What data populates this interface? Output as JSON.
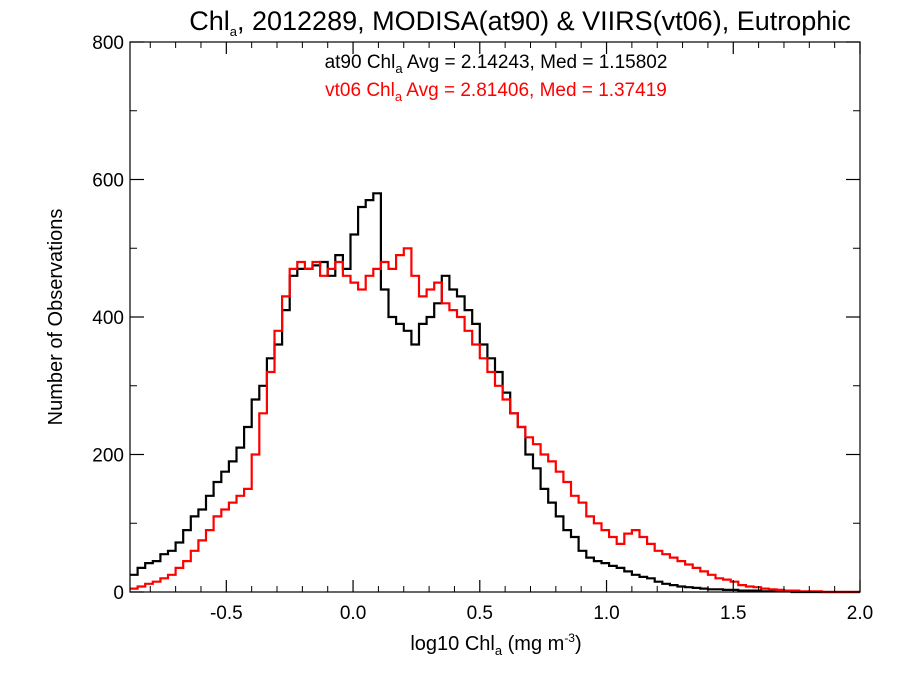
{
  "chart_data": {
    "type": "line",
    "step": true,
    "title": {
      "main": "Chl",
      "sub": "a",
      "rest": ", 2012289, MODISA(at90) & VIIRS(vt06), Eutrophic"
    },
    "xlabel": {
      "pre": "log10 Chl",
      "sub": "a",
      "mid": " (mg m",
      "sup": "-3",
      "post": ")"
    },
    "ylabel": "Number of Observations",
    "xlim": [
      -0.88,
      2.0
    ],
    "ylim": [
      0,
      800
    ],
    "x_ticks": [
      "-0.5",
      "0.0",
      "0.5",
      "1.0",
      "1.5",
      "2.0"
    ],
    "x_tick_values": [
      -0.5,
      0.0,
      0.5,
      1.0,
      1.5,
      2.0
    ],
    "y_ticks": [
      "0",
      "200",
      "400",
      "600",
      "800"
    ],
    "y_tick_values": [
      0,
      200,
      400,
      600,
      800
    ],
    "annotations": [
      {
        "pre": "at90 Chl",
        "sub": "a",
        "post": " Avg = 2.14243, Med = 1.15802",
        "color": "#000000"
      },
      {
        "pre": "vt06 Chl",
        "sub": "a",
        "post": " Avg = 2.81406, Med = 1.37419",
        "color": "#ff0000"
      }
    ],
    "series": [
      {
        "name": "at90",
        "color": "#000000",
        "x": [
          -0.88,
          -0.85,
          -0.82,
          -0.79,
          -0.76,
          -0.73,
          -0.7,
          -0.67,
          -0.64,
          -0.61,
          -0.58,
          -0.55,
          -0.52,
          -0.49,
          -0.46,
          -0.43,
          -0.4,
          -0.37,
          -0.34,
          -0.31,
          -0.28,
          -0.25,
          -0.22,
          -0.19,
          -0.16,
          -0.13,
          -0.1,
          -0.07,
          -0.04,
          -0.01,
          0.02,
          0.05,
          0.08,
          0.11,
          0.14,
          0.17,
          0.2,
          0.23,
          0.26,
          0.29,
          0.32,
          0.35,
          0.38,
          0.41,
          0.44,
          0.47,
          0.5,
          0.53,
          0.56,
          0.59,
          0.62,
          0.65,
          0.68,
          0.71,
          0.74,
          0.77,
          0.8,
          0.83,
          0.86,
          0.89,
          0.92,
          0.95,
          0.98,
          1.01,
          1.04,
          1.07,
          1.1,
          1.13,
          1.16,
          1.19,
          1.22,
          1.25,
          1.28,
          1.31,
          1.34,
          1.37,
          1.4,
          1.43,
          1.46,
          1.49,
          1.52,
          1.55,
          1.58,
          1.61,
          1.64,
          1.67,
          1.7,
          1.73,
          1.76,
          1.79,
          1.82,
          1.85,
          1.88,
          1.91,
          1.94,
          1.97
        ],
        "values": [
          25,
          35,
          42,
          45,
          55,
          60,
          72,
          90,
          110,
          120,
          140,
          160,
          175,
          190,
          210,
          240,
          280,
          300,
          340,
          360,
          410,
          460,
          470,
          470,
          475,
          480,
          460,
          490,
          470,
          520,
          560,
          570,
          580,
          440,
          400,
          390,
          380,
          360,
          390,
          400,
          420,
          460,
          440,
          430,
          410,
          390,
          360,
          340,
          320,
          290,
          260,
          240,
          200,
          180,
          150,
          130,
          110,
          90,
          80,
          60,
          50,
          45,
          42,
          38,
          35,
          30,
          25,
          22,
          20,
          15,
          12,
          10,
          8,
          7,
          6,
          5,
          4,
          4,
          3,
          3,
          2,
          2,
          2,
          1,
          1,
          1,
          1,
          0,
          0,
          0,
          0,
          0,
          0,
          0,
          0,
          0
        ]
      },
      {
        "name": "vt06",
        "color": "#ff0000",
        "x": [
          -0.88,
          -0.85,
          -0.82,
          -0.79,
          -0.76,
          -0.73,
          -0.7,
          -0.67,
          -0.64,
          -0.61,
          -0.58,
          -0.55,
          -0.52,
          -0.49,
          -0.46,
          -0.43,
          -0.4,
          -0.37,
          -0.34,
          -0.31,
          -0.28,
          -0.25,
          -0.22,
          -0.19,
          -0.16,
          -0.13,
          -0.1,
          -0.07,
          -0.04,
          -0.01,
          0.02,
          0.05,
          0.08,
          0.11,
          0.14,
          0.17,
          0.2,
          0.23,
          0.26,
          0.29,
          0.32,
          0.35,
          0.38,
          0.41,
          0.44,
          0.47,
          0.5,
          0.53,
          0.56,
          0.59,
          0.62,
          0.65,
          0.68,
          0.71,
          0.74,
          0.77,
          0.8,
          0.83,
          0.86,
          0.89,
          0.92,
          0.95,
          0.98,
          1.01,
          1.04,
          1.07,
          1.1,
          1.13,
          1.16,
          1.19,
          1.22,
          1.25,
          1.28,
          1.31,
          1.34,
          1.37,
          1.4,
          1.43,
          1.46,
          1.49,
          1.52,
          1.55,
          1.58,
          1.61,
          1.64,
          1.67,
          1.7,
          1.73,
          1.76,
          1.79,
          1.82,
          1.85,
          1.88,
          1.91,
          1.94,
          1.97
        ],
        "values": [
          5,
          8,
          12,
          15,
          20,
          25,
          35,
          45,
          60,
          75,
          90,
          110,
          120,
          130,
          140,
          150,
          200,
          260,
          320,
          380,
          430,
          470,
          480,
          470,
          480,
          460,
          470,
          480,
          460,
          450,
          440,
          460,
          470,
          480,
          470,
          490,
          500,
          460,
          430,
          440,
          450,
          420,
          410,
          400,
          380,
          360,
          340,
          320,
          300,
          280,
          260,
          240,
          225,
          215,
          200,
          190,
          175,
          160,
          140,
          130,
          110,
          100,
          90,
          80,
          70,
          85,
          90,
          80,
          70,
          60,
          55,
          50,
          45,
          40,
          35,
          30,
          25,
          20,
          18,
          15,
          10,
          8,
          7,
          5,
          4,
          3,
          2,
          2,
          1,
          1,
          1,
          0,
          0,
          0,
          0,
          0
        ]
      }
    ]
  }
}
